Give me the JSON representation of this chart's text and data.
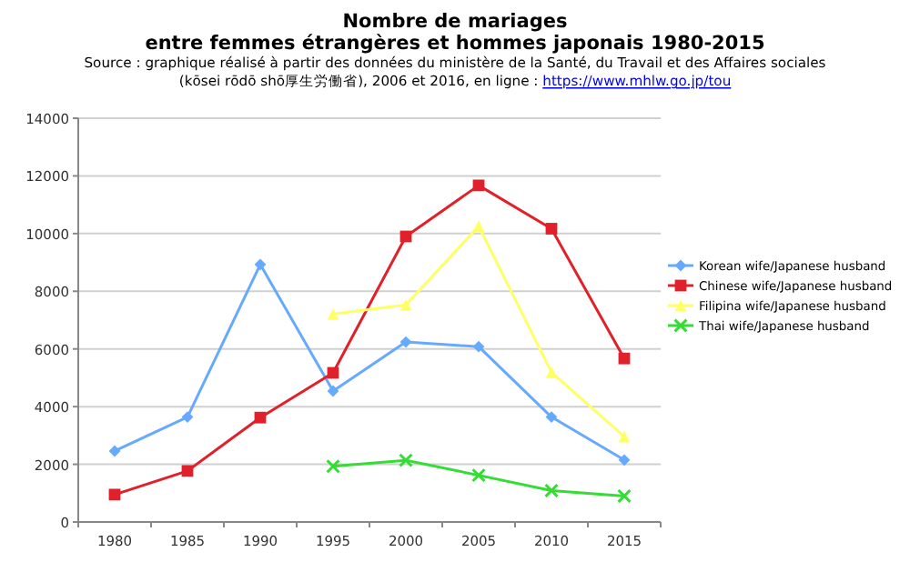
{
  "chart_data": {
    "type": "line",
    "title": "Nombre de mariages\nentre femmes étrangères et hommes japonais 1980-2015",
    "subtitle": "Source : graphique réalisé à partir des données du ministère de la Santé, du Travail et des Affaires sociales\n(kōsei rōdō shō厚生労働省), 2006 et 2016, en ligne : https://www.mhlw.go.jp/tou",
    "categories": [
      "1980",
      "1985",
      "1990",
      "1995",
      "2000",
      "2005",
      "2010",
      "2015"
    ],
    "series": [
      {
        "name": "Korean wife/Japanese husband",
        "color": "#66aaff",
        "marker": "diamond",
        "values": [
          2460,
          3640,
          8930,
          4540,
          6240,
          6080,
          3640,
          2150
        ]
      },
      {
        "name": "Chinese wife/Japanese husband",
        "color": "#e0202a",
        "marker": "square",
        "values": [
          950,
          1770,
          3620,
          5170,
          9900,
          11670,
          10170,
          5670
        ]
      },
      {
        "name": "Filipina wife/Japanese husband",
        "color": "#ffff66",
        "marker": "triangle",
        "values": [
          null,
          null,
          null,
          7210,
          7530,
          10260,
          5190,
          2960
        ]
      },
      {
        "name": "Thai wife/Japanese husband",
        "color": "#33dd33",
        "marker": "cross",
        "values": [
          null,
          null,
          null,
          1930,
          2140,
          1620,
          1090,
          900
        ]
      }
    ],
    "ylim": [
      0,
      14000
    ],
    "yticks": [
      0,
      2000,
      4000,
      6000,
      8000,
      10000,
      12000,
      14000
    ],
    "grid": "y",
    "legend": "right"
  }
}
